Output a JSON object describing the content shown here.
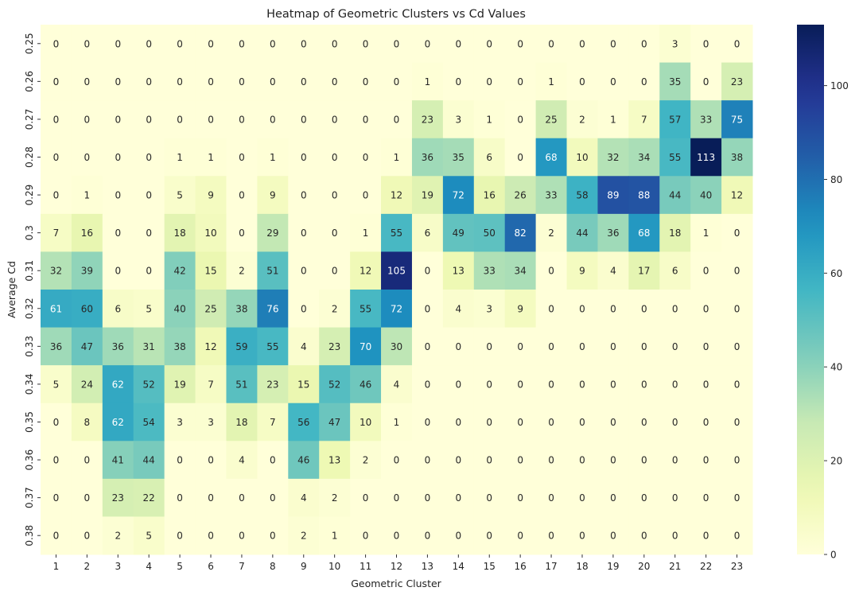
{
  "chart_data": {
    "type": "heatmap",
    "title": "Heatmap of Geometric Clusters vs Cd Values",
    "xlabel": "Geometric Cluster",
    "ylabel": "Average Cd",
    "x_categories": [
      "1",
      "2",
      "3",
      "4",
      "5",
      "6",
      "7",
      "8",
      "9",
      "10",
      "11",
      "12",
      "13",
      "14",
      "15",
      "16",
      "17",
      "18",
      "19",
      "20",
      "21",
      "22",
      "23"
    ],
    "y_categories": [
      "0.25",
      "0.26",
      "0.27",
      "0.28",
      "0.29",
      "0.3",
      "0.31",
      "0.32",
      "0.33",
      "0.34",
      "0.35",
      "0.36",
      "0.37",
      "0.38"
    ],
    "values": [
      [
        0,
        0,
        0,
        0,
        0,
        0,
        0,
        0,
        0,
        0,
        0,
        0,
        0,
        0,
        0,
        0,
        0,
        0,
        0,
        0,
        3,
        0,
        0
      ],
      [
        0,
        0,
        0,
        0,
        0,
        0,
        0,
        0,
        0,
        0,
        0,
        0,
        1,
        0,
        0,
        0,
        1,
        0,
        0,
        0,
        35,
        0,
        23
      ],
      [
        0,
        0,
        0,
        0,
        0,
        0,
        0,
        0,
        0,
        0,
        0,
        0,
        23,
        3,
        1,
        0,
        25,
        2,
        1,
        7,
        57,
        33,
        75
      ],
      [
        0,
        0,
        0,
        0,
        1,
        1,
        0,
        1,
        0,
        0,
        0,
        1,
        36,
        35,
        6,
        0,
        68,
        10,
        32,
        34,
        55,
        113,
        38
      ],
      [
        0,
        1,
        0,
        0,
        5,
        9,
        0,
        9,
        0,
        0,
        0,
        12,
        19,
        72,
        16,
        26,
        33,
        58,
        89,
        88,
        44,
        40,
        12
      ],
      [
        7,
        16,
        0,
        0,
        18,
        10,
        0,
        29,
        0,
        0,
        1,
        55,
        6,
        49,
        50,
        82,
        2,
        44,
        36,
        68,
        18,
        1,
        0
      ],
      [
        32,
        39,
        0,
        0,
        42,
        15,
        2,
        51,
        0,
        0,
        12,
        105,
        0,
        13,
        33,
        34,
        0,
        9,
        4,
        17,
        6,
        0,
        0
      ],
      [
        61,
        60,
        6,
        5,
        40,
        25,
        38,
        76,
        0,
        2,
        55,
        72,
        0,
        4,
        3,
        9,
        0,
        0,
        0,
        0,
        0,
        0,
        0
      ],
      [
        36,
        47,
        36,
        31,
        38,
        12,
        59,
        55,
        4,
        23,
        70,
        30,
        0,
        0,
        0,
        0,
        0,
        0,
        0,
        0,
        0,
        0,
        0
      ],
      [
        5,
        24,
        62,
        52,
        19,
        7,
        51,
        23,
        15,
        52,
        46,
        4,
        0,
        0,
        0,
        0,
        0,
        0,
        0,
        0,
        0,
        0,
        0
      ],
      [
        0,
        8,
        62,
        54,
        3,
        3,
        18,
        7,
        56,
        47,
        10,
        1,
        0,
        0,
        0,
        0,
        0,
        0,
        0,
        0,
        0,
        0,
        0
      ],
      [
        0,
        0,
        41,
        44,
        0,
        0,
        4,
        0,
        46,
        13,
        2,
        0,
        0,
        0,
        0,
        0,
        0,
        0,
        0,
        0,
        0,
        0,
        0
      ],
      [
        0,
        0,
        23,
        22,
        0,
        0,
        0,
        0,
        4,
        2,
        0,
        0,
        0,
        0,
        0,
        0,
        0,
        0,
        0,
        0,
        0,
        0,
        0
      ],
      [
        0,
        0,
        2,
        5,
        0,
        0,
        0,
        0,
        2,
        1,
        0,
        0,
        0,
        0,
        0,
        0,
        0,
        0,
        0,
        0,
        0,
        0,
        0
      ]
    ],
    "colormap": "YlGnBu",
    "colormap_stops": [
      "#ffffd9",
      "#edf8b1",
      "#c7e9b4",
      "#7fcdbb",
      "#41b6c4",
      "#1d91c0",
      "#225ea8",
      "#253494",
      "#081d58"
    ],
    "vmin": 0,
    "vmax": 113,
    "colorbar_ticks": [
      "0",
      "20",
      "40",
      "60",
      "80",
      "100"
    ],
    "annotated": true,
    "grid": false,
    "legend": "colorbar-right"
  }
}
